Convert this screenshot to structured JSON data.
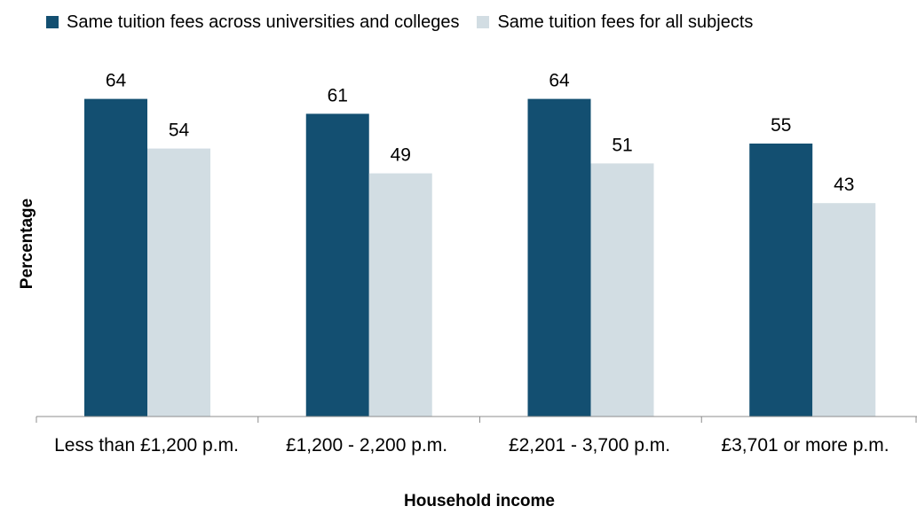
{
  "chart_data": {
    "type": "bar",
    "title": "",
    "xlabel": "Household income",
    "ylabel": "Percentage",
    "categories": [
      "Less than £1,200 p.m.",
      "£1,200 - 2,200 p.m.",
      "£2,201 - 3,700 p.m.",
      "£3,701 or more p.m."
    ],
    "series": [
      {
        "name": "Same tuition fees across universities and colleges",
        "values": [
          64,
          61,
          64,
          55
        ],
        "color": "#134f71"
      },
      {
        "name": "Same tuition fees for all subjects",
        "values": [
          54,
          49,
          51,
          43
        ],
        "color": "#d2dde3"
      }
    ],
    "ylim": [
      0,
      70
    ],
    "grid": false,
    "legend_position": "top",
    "data_labels": true
  }
}
